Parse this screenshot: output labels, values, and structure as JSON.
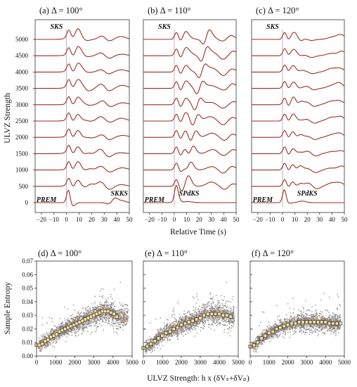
{
  "figure": {
    "ylabel_top": "ULVZ Strength",
    "xlabel_top": "Relative Time (s)",
    "ylabel_bottom": "Sample Entropy",
    "xlabel_bottom": "ULVZ Strength:  h x (δVₛ+δVₚ)",
    "colors": {
      "trace": "#9b2f22",
      "scatter": "#6e6e74",
      "spread": "#d9a877",
      "median": "#f4e2a3",
      "zero_line": "#b48ab0"
    }
  },
  "chart_data": [
    {
      "type": "line",
      "panel": "a",
      "title": "(a) Δ = 100°",
      "xlabel": "Relative Time (s)",
      "ylabel": "ULVZ Strength",
      "xlim": [
        -25,
        50
      ],
      "x_ticks": [
        "−20",
        "−10",
        "0",
        "10",
        "20",
        "30",
        "40",
        "50"
      ],
      "y_ticks": [
        "0",
        "500",
        "1000",
        "1500",
        "2000",
        "2500",
        "3000",
        "3500",
        "4000",
        "4500",
        "5000"
      ],
      "series_levels": [
        0,
        500,
        1000,
        1500,
        2000,
        2500,
        3000,
        3500,
        4000,
        4500,
        5000
      ],
      "annotations": [
        {
          "text": "SKS",
          "x": -8,
          "level": 5000
        },
        {
          "text": "PREM",
          "x": -16,
          "level": 0
        },
        {
          "text": "SKKS",
          "x": 42,
          "level": 0
        }
      ]
    },
    {
      "type": "line",
      "panel": "b",
      "title": "(b) Δ = 110°",
      "xlabel": "Relative Time (s)",
      "xlim": [
        -25,
        50
      ],
      "x_ticks": [
        "−20",
        "−10",
        "0",
        "10",
        "20",
        "30",
        "40",
        "50"
      ],
      "series_levels": [
        0,
        500,
        1000,
        1500,
        2000,
        2500,
        3000,
        3500,
        4000,
        4500,
        5000
      ],
      "annotations": [
        {
          "text": "SKS",
          "x": -8,
          "level": 5000
        },
        {
          "text": "PREM",
          "x": -16,
          "level": 0
        },
        {
          "text": "SPdKS",
          "x": 12,
          "level": 0
        }
      ]
    },
    {
      "type": "line",
      "panel": "c",
      "title": "(c) Δ = 120°",
      "xlabel": "Relative Time (s)",
      "xlim": [
        -25,
        50
      ],
      "x_ticks": [
        "−20",
        "−10",
        "0",
        "10",
        "20",
        "30",
        "40",
        "50"
      ],
      "series_levels": [
        0,
        500,
        1000,
        1500,
        2000,
        2500,
        3000,
        3500,
        4000,
        4500,
        5000
      ],
      "annotations": [
        {
          "text": "SKS",
          "x": -8,
          "level": 5000
        },
        {
          "text": "PREM",
          "x": -16,
          "level": 0
        },
        {
          "text": "SPdKS",
          "x": 20,
          "level": 0
        }
      ]
    },
    {
      "type": "scatter",
      "panel": "d",
      "title": "(d) Δ = 100°",
      "xlabel": "ULVZ Strength:  h x (δVₛ+δVₚ)",
      "ylabel": "Sample Entropy",
      "xlim": [
        0,
        5000
      ],
      "ylim": [
        0,
        0.07
      ],
      "x_ticks": [
        "0",
        "1000",
        "2000",
        "3000",
        "4000",
        "5000"
      ],
      "y_ticks": [
        "0.00",
        "0.01",
        "0.02",
        "0.03",
        "0.04",
        "0.05",
        "0.06",
        "0.07"
      ],
      "median_x": [
        0,
        150,
        300,
        450,
        600,
        750,
        900,
        1050,
        1200,
        1350,
        1500,
        1650,
        1800,
        1950,
        2100,
        2250,
        2400,
        2550,
        2700,
        2850,
        3000,
        3150,
        3300,
        3450,
        3600,
        3750,
        3900,
        4050,
        4200
      ],
      "median_y": [
        0.008,
        0.008,
        0.009,
        0.011,
        0.012,
        0.014,
        0.015,
        0.016,
        0.018,
        0.019,
        0.02,
        0.021,
        0.022,
        0.023,
        0.024,
        0.025,
        0.026,
        0.027,
        0.028,
        0.029,
        0.03,
        0.031,
        0.032,
        0.033,
        0.033,
        0.033,
        0.032,
        0.031,
        0.029
      ],
      "spread": 0.006
    },
    {
      "type": "scatter",
      "panel": "e",
      "title": "(e) Δ = 110°",
      "xlabel": "ULVZ Strength:  h x (δVₛ+δVₚ)",
      "xlim": [
        0,
        5000
      ],
      "ylim": [
        0,
        0.07
      ],
      "x_ticks": [
        "0",
        "1000",
        "2000",
        "3000",
        "4000",
        "5000"
      ],
      "median_x": [
        0,
        200,
        400,
        600,
        800,
        1000,
        1200,
        1400,
        1600,
        1800,
        2000,
        2200,
        2400,
        2600,
        2800,
        3000,
        3200,
        3400,
        3600,
        3800,
        4000,
        4200,
        4400,
        4600
      ],
      "median_y": [
        0.006,
        0.007,
        0.009,
        0.011,
        0.013,
        0.015,
        0.017,
        0.018,
        0.02,
        0.021,
        0.023,
        0.024,
        0.025,
        0.026,
        0.027,
        0.028,
        0.03,
        0.031,
        0.031,
        0.031,
        0.031,
        0.03,
        0.03,
        0.029
      ],
      "spread": 0.006
    },
    {
      "type": "scatter",
      "panel": "f",
      "title": "(f) Δ = 120°",
      "xlabel": "ULVZ Strength:  h x (δVₛ+δVₚ)",
      "xlim": [
        0,
        5000
      ],
      "ylim": [
        0,
        0.07
      ],
      "x_ticks": [
        "0",
        "1000",
        "2000",
        "3000",
        "4000",
        "5000"
      ],
      "median_x": [
        0,
        200,
        400,
        600,
        800,
        1000,
        1200,
        1400,
        1600,
        1800,
        2000,
        2200,
        2400,
        2600,
        2800,
        3000,
        3200,
        3400,
        3600,
        3800,
        4000,
        4200,
        4400,
        4600,
        4800
      ],
      "median_y": [
        0.007,
        0.008,
        0.01,
        0.013,
        0.015,
        0.017,
        0.018,
        0.02,
        0.021,
        0.022,
        0.023,
        0.024,
        0.024,
        0.025,
        0.025,
        0.025,
        0.025,
        0.025,
        0.025,
        0.025,
        0.025,
        0.024,
        0.024,
        0.024,
        0.024
      ],
      "spread": 0.005
    }
  ]
}
